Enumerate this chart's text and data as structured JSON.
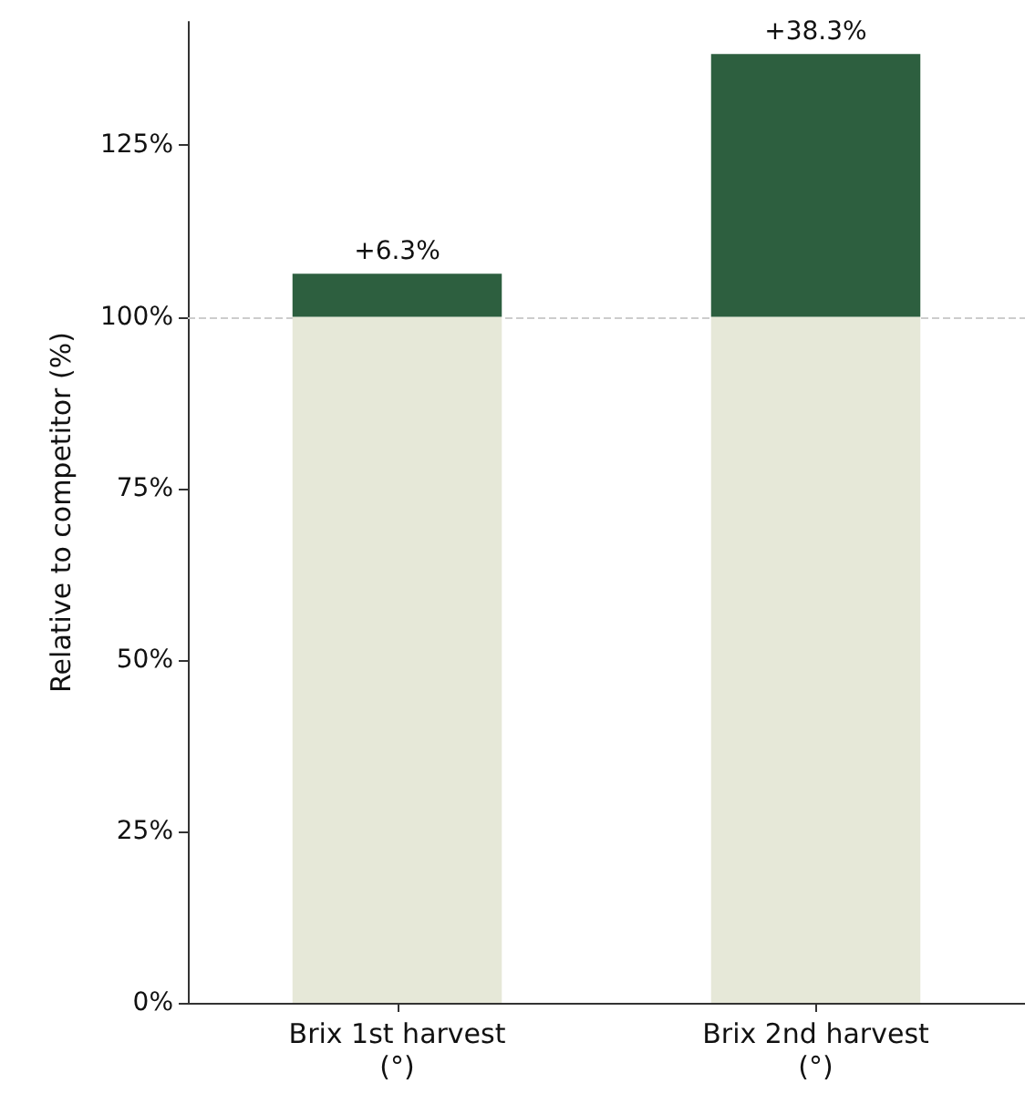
{
  "chart_data": {
    "type": "bar",
    "stacked": true,
    "ylabel": "Relative to competitor (%)",
    "categories": [
      "Brix 1st harvest\n(°)",
      "Brix 2nd harvest\n(°)"
    ],
    "series": [
      {
        "color": "#e6e8d8",
        "values": [
          100,
          100
        ]
      },
      {
        "color": "#2d5f3f",
        "values": [
          6.3,
          38.3
        ],
        "value_labels": [
          "+6.3%",
          "+38.3%"
        ]
      }
    ],
    "ylim": [
      0,
      143
    ],
    "yticks": [
      {
        "value": 0,
        "label": "0%"
      },
      {
        "value": 25,
        "label": "25%"
      },
      {
        "value": 50,
        "label": "50%"
      },
      {
        "value": 75,
        "label": "75%"
      },
      {
        "value": 100,
        "label": "100%"
      },
      {
        "value": 125,
        "label": "125%"
      }
    ],
    "ref_lines": [
      {
        "axis": "y",
        "value": 100,
        "color": "#cccccc",
        "line_style": "dashed"
      }
    ]
  }
}
